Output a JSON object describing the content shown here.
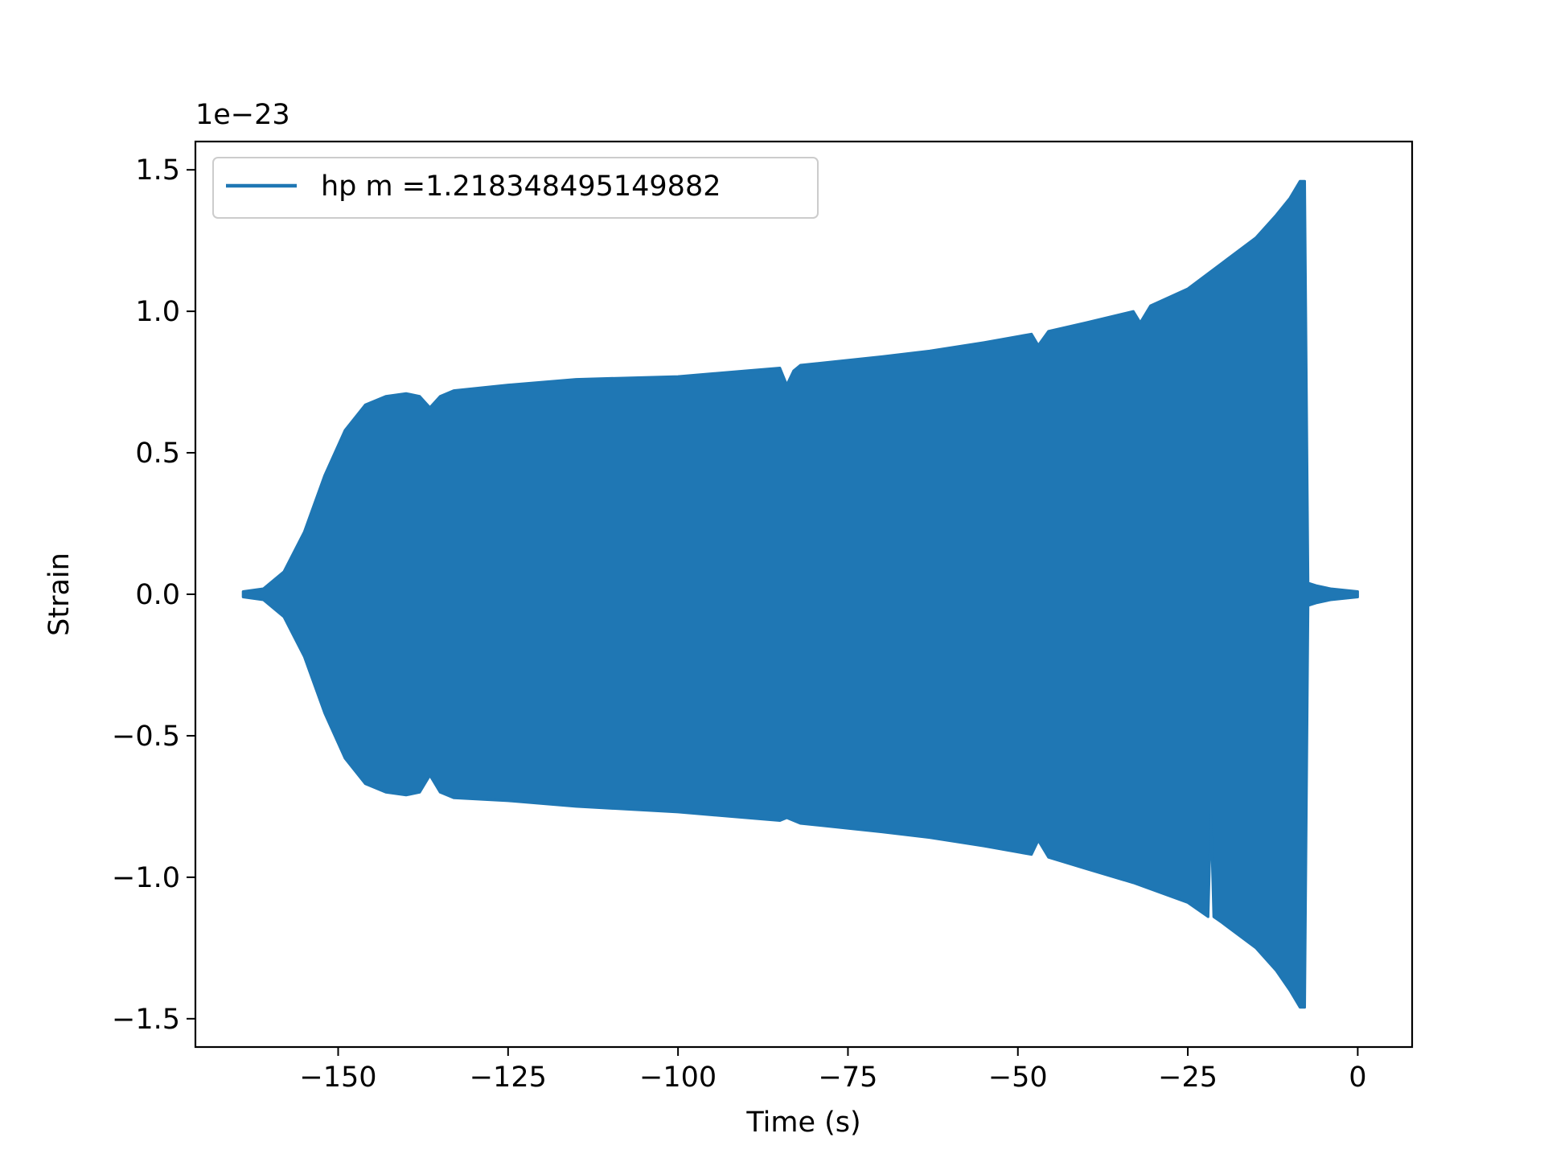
{
  "chart_data": {
    "type": "line",
    "title": "",
    "xlabel": "Time (s)",
    "ylabel": "Strain",
    "y_offset_label": "1e−23",
    "xlim": [
      -171,
      8
    ],
    "ylim": [
      -1.6,
      1.6
    ],
    "x_ticks": [
      {
        "value": -150,
        "label": "−150"
      },
      {
        "value": -125,
        "label": "−125"
      },
      {
        "value": -100,
        "label": "−100"
      },
      {
        "value": -75,
        "label": "−75"
      },
      {
        "value": -50,
        "label": "−50"
      },
      {
        "value": -25,
        "label": "−25"
      },
      {
        "value": 0,
        "label": "0"
      }
    ],
    "y_ticks": [
      {
        "value": -1.5,
        "label": "−1.5"
      },
      {
        "value": -1.0,
        "label": "−1.0"
      },
      {
        "value": -0.5,
        "label": "−0.5"
      },
      {
        "value": 0.0,
        "label": "0.0"
      },
      {
        "value": 0.5,
        "label": "0.5"
      },
      {
        "value": 1.0,
        "label": "1.0"
      },
      {
        "value": 1.5,
        "label": "1.5"
      }
    ],
    "grid": false,
    "legend": {
      "position": "top-left"
    },
    "series": [
      {
        "name": "hp m =1.218348495149882",
        "color": "#1f77b4",
        "style": "dense-oscillation-envelope",
        "upper_envelope": [
          [
            -164,
            0.01
          ],
          [
            -161,
            0.02
          ],
          [
            -158,
            0.08
          ],
          [
            -155,
            0.22
          ],
          [
            -152,
            0.42
          ],
          [
            -149,
            0.58
          ],
          [
            -146,
            0.67
          ],
          [
            -143,
            0.7
          ],
          [
            -140,
            0.71
          ],
          [
            -138,
            0.7
          ],
          [
            -136.5,
            0.66
          ],
          [
            -135,
            0.7
          ],
          [
            -133,
            0.72
          ],
          [
            -125,
            0.74
          ],
          [
            -115,
            0.76
          ],
          [
            -100,
            0.77
          ],
          [
            -90,
            0.79
          ],
          [
            -85,
            0.8
          ],
          [
            -84,
            0.74
          ],
          [
            -83,
            0.79
          ],
          [
            -82,
            0.81
          ],
          [
            -70,
            0.84
          ],
          [
            -63,
            0.86
          ],
          [
            -55,
            0.89
          ],
          [
            -48,
            0.92
          ],
          [
            -47,
            0.88
          ],
          [
            -45.5,
            0.93
          ],
          [
            -40,
            0.96
          ],
          [
            -33,
            1.0
          ],
          [
            -32,
            0.96
          ],
          [
            -30.5,
            1.02
          ],
          [
            -25,
            1.08
          ],
          [
            -20,
            1.17
          ],
          [
            -15,
            1.26
          ],
          [
            -12,
            1.34
          ],
          [
            -10,
            1.4
          ],
          [
            -8.5,
            1.46
          ],
          [
            -7.8,
            1.46
          ],
          [
            -7.3,
            0.04
          ],
          [
            -6,
            0.03
          ],
          [
            -4,
            0.02
          ],
          [
            -2,
            0.015
          ],
          [
            0,
            0.01
          ]
        ],
        "lower_envelope": [
          [
            -164,
            -0.01
          ],
          [
            -161,
            -0.02
          ],
          [
            -158,
            -0.08
          ],
          [
            -155,
            -0.22
          ],
          [
            -152,
            -0.42
          ],
          [
            -149,
            -0.58
          ],
          [
            -146,
            -0.67
          ],
          [
            -143,
            -0.7
          ],
          [
            -140,
            -0.71
          ],
          [
            -138,
            -0.7
          ],
          [
            -136.5,
            -0.64
          ],
          [
            -135,
            -0.7
          ],
          [
            -133,
            -0.72
          ],
          [
            -125,
            -0.73
          ],
          [
            -115,
            -0.75
          ],
          [
            -100,
            -0.77
          ],
          [
            -90,
            -0.79
          ],
          [
            -85,
            -0.8
          ],
          [
            -84,
            -0.79
          ],
          [
            -83,
            -0.8
          ],
          [
            -82,
            -0.81
          ],
          [
            -70,
            -0.84
          ],
          [
            -63,
            -0.86
          ],
          [
            -55,
            -0.89
          ],
          [
            -48,
            -0.92
          ],
          [
            -47,
            -0.87
          ],
          [
            -45.5,
            -0.93
          ],
          [
            -40,
            -0.97
          ],
          [
            -33,
            -1.02
          ],
          [
            -25,
            -1.09
          ],
          [
            -22,
            -1.14
          ],
          [
            -21.6,
            -0.78
          ],
          [
            -21.2,
            -1.14
          ],
          [
            -20,
            -1.16
          ],
          [
            -15,
            -1.25
          ],
          [
            -12,
            -1.33
          ],
          [
            -10,
            -1.4
          ],
          [
            -8.5,
            -1.46
          ],
          [
            -7.8,
            -1.46
          ],
          [
            -7.3,
            -0.04
          ],
          [
            -6,
            -0.03
          ],
          [
            -4,
            -0.02
          ],
          [
            -2,
            -0.015
          ],
          [
            0,
            -0.01
          ]
        ]
      }
    ]
  }
}
